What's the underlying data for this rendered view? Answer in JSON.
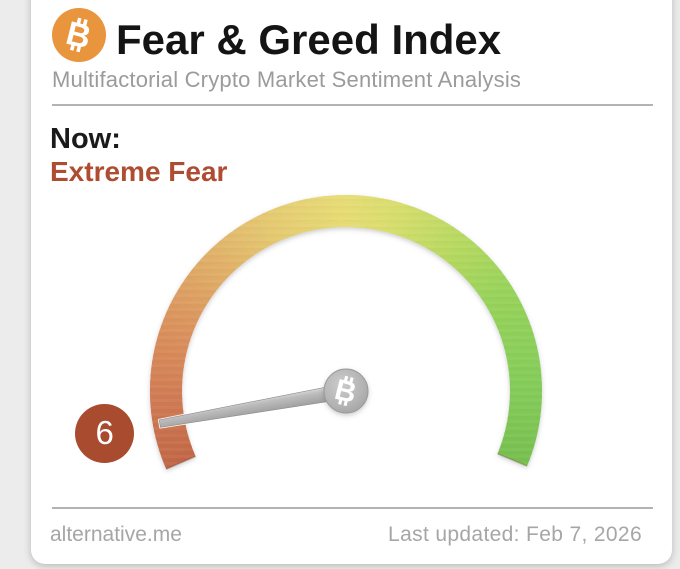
{
  "card": {
    "header": {
      "icon": "bitcoin",
      "title": "Fear & Greed Index",
      "subtitle": "Multifactorial Crypto Market Sentiment Analysis"
    },
    "now_label": "Now:",
    "sentiment": "Extreme Fear",
    "footer": {
      "source": "alternative.me",
      "last_updated": "Last updated: Feb 7, 2026"
    }
  },
  "colors": {
    "brand_orange": "#e9953d",
    "sentiment_red": "#ae4d31",
    "badge_red": "#a84b2f",
    "needle_gray": "#b5b5b5"
  },
  "chart_data": {
    "type": "gauge",
    "value": 6,
    "min": 0,
    "max": 100,
    "label": "Extreme Fear",
    "start_deg": 203.5,
    "sweep_deg": 226,
    "color_stops": [
      {
        "pos": 0,
        "color": "#c96a48"
      },
      {
        "pos": 10,
        "color": "#d27b52"
      },
      {
        "pos": 20,
        "color": "#da925c"
      },
      {
        "pos": 30,
        "color": "#dfac63"
      },
      {
        "pos": 40,
        "color": "#e3c769"
      },
      {
        "pos": 50,
        "color": "#e5d96b"
      },
      {
        "pos": 57,
        "color": "#d5db64"
      },
      {
        "pos": 65,
        "color": "#b9d75a"
      },
      {
        "pos": 75,
        "color": "#98d258"
      },
      {
        "pos": 88,
        "color": "#85cd58"
      },
      {
        "pos": 100,
        "color": "#7bc751"
      }
    ]
  }
}
